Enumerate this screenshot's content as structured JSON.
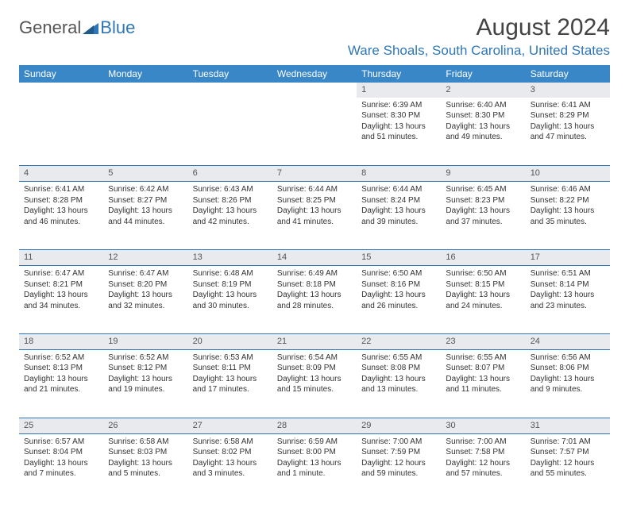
{
  "brand": {
    "part1": "General",
    "part2": "Blue"
  },
  "title": "August 2024",
  "location": "Ware Shoals, South Carolina, United States",
  "day_headers": [
    "Sunday",
    "Monday",
    "Tuesday",
    "Wednesday",
    "Thursday",
    "Friday",
    "Saturday"
  ],
  "colors": {
    "header_bg": "#3a87c8",
    "accent": "#2f77b7",
    "daynum_bg": "#e8eaed",
    "text": "#333333"
  },
  "weeks": [
    [
      null,
      null,
      null,
      null,
      {
        "n": "1",
        "sr": "Sunrise: 6:39 AM",
        "ss": "Sunset: 8:30 PM",
        "d1": "Daylight: 13 hours",
        "d2": "and 51 minutes."
      },
      {
        "n": "2",
        "sr": "Sunrise: 6:40 AM",
        "ss": "Sunset: 8:30 PM",
        "d1": "Daylight: 13 hours",
        "d2": "and 49 minutes."
      },
      {
        "n": "3",
        "sr": "Sunrise: 6:41 AM",
        "ss": "Sunset: 8:29 PM",
        "d1": "Daylight: 13 hours",
        "d2": "and 47 minutes."
      }
    ],
    [
      {
        "n": "4",
        "sr": "Sunrise: 6:41 AM",
        "ss": "Sunset: 8:28 PM",
        "d1": "Daylight: 13 hours",
        "d2": "and 46 minutes."
      },
      {
        "n": "5",
        "sr": "Sunrise: 6:42 AM",
        "ss": "Sunset: 8:27 PM",
        "d1": "Daylight: 13 hours",
        "d2": "and 44 minutes."
      },
      {
        "n": "6",
        "sr": "Sunrise: 6:43 AM",
        "ss": "Sunset: 8:26 PM",
        "d1": "Daylight: 13 hours",
        "d2": "and 42 minutes."
      },
      {
        "n": "7",
        "sr": "Sunrise: 6:44 AM",
        "ss": "Sunset: 8:25 PM",
        "d1": "Daylight: 13 hours",
        "d2": "and 41 minutes."
      },
      {
        "n": "8",
        "sr": "Sunrise: 6:44 AM",
        "ss": "Sunset: 8:24 PM",
        "d1": "Daylight: 13 hours",
        "d2": "and 39 minutes."
      },
      {
        "n": "9",
        "sr": "Sunrise: 6:45 AM",
        "ss": "Sunset: 8:23 PM",
        "d1": "Daylight: 13 hours",
        "d2": "and 37 minutes."
      },
      {
        "n": "10",
        "sr": "Sunrise: 6:46 AM",
        "ss": "Sunset: 8:22 PM",
        "d1": "Daylight: 13 hours",
        "d2": "and 35 minutes."
      }
    ],
    [
      {
        "n": "11",
        "sr": "Sunrise: 6:47 AM",
        "ss": "Sunset: 8:21 PM",
        "d1": "Daylight: 13 hours",
        "d2": "and 34 minutes."
      },
      {
        "n": "12",
        "sr": "Sunrise: 6:47 AM",
        "ss": "Sunset: 8:20 PM",
        "d1": "Daylight: 13 hours",
        "d2": "and 32 minutes."
      },
      {
        "n": "13",
        "sr": "Sunrise: 6:48 AM",
        "ss": "Sunset: 8:19 PM",
        "d1": "Daylight: 13 hours",
        "d2": "and 30 minutes."
      },
      {
        "n": "14",
        "sr": "Sunrise: 6:49 AM",
        "ss": "Sunset: 8:18 PM",
        "d1": "Daylight: 13 hours",
        "d2": "and 28 minutes."
      },
      {
        "n": "15",
        "sr": "Sunrise: 6:50 AM",
        "ss": "Sunset: 8:16 PM",
        "d1": "Daylight: 13 hours",
        "d2": "and 26 minutes."
      },
      {
        "n": "16",
        "sr": "Sunrise: 6:50 AM",
        "ss": "Sunset: 8:15 PM",
        "d1": "Daylight: 13 hours",
        "d2": "and 24 minutes."
      },
      {
        "n": "17",
        "sr": "Sunrise: 6:51 AM",
        "ss": "Sunset: 8:14 PM",
        "d1": "Daylight: 13 hours",
        "d2": "and 23 minutes."
      }
    ],
    [
      {
        "n": "18",
        "sr": "Sunrise: 6:52 AM",
        "ss": "Sunset: 8:13 PM",
        "d1": "Daylight: 13 hours",
        "d2": "and 21 minutes."
      },
      {
        "n": "19",
        "sr": "Sunrise: 6:52 AM",
        "ss": "Sunset: 8:12 PM",
        "d1": "Daylight: 13 hours",
        "d2": "and 19 minutes."
      },
      {
        "n": "20",
        "sr": "Sunrise: 6:53 AM",
        "ss": "Sunset: 8:11 PM",
        "d1": "Daylight: 13 hours",
        "d2": "and 17 minutes."
      },
      {
        "n": "21",
        "sr": "Sunrise: 6:54 AM",
        "ss": "Sunset: 8:09 PM",
        "d1": "Daylight: 13 hours",
        "d2": "and 15 minutes."
      },
      {
        "n": "22",
        "sr": "Sunrise: 6:55 AM",
        "ss": "Sunset: 8:08 PM",
        "d1": "Daylight: 13 hours",
        "d2": "and 13 minutes."
      },
      {
        "n": "23",
        "sr": "Sunrise: 6:55 AM",
        "ss": "Sunset: 8:07 PM",
        "d1": "Daylight: 13 hours",
        "d2": "and 11 minutes."
      },
      {
        "n": "24",
        "sr": "Sunrise: 6:56 AM",
        "ss": "Sunset: 8:06 PM",
        "d1": "Daylight: 13 hours",
        "d2": "and 9 minutes."
      }
    ],
    [
      {
        "n": "25",
        "sr": "Sunrise: 6:57 AM",
        "ss": "Sunset: 8:04 PM",
        "d1": "Daylight: 13 hours",
        "d2": "and 7 minutes."
      },
      {
        "n": "26",
        "sr": "Sunrise: 6:58 AM",
        "ss": "Sunset: 8:03 PM",
        "d1": "Daylight: 13 hours",
        "d2": "and 5 minutes."
      },
      {
        "n": "27",
        "sr": "Sunrise: 6:58 AM",
        "ss": "Sunset: 8:02 PM",
        "d1": "Daylight: 13 hours",
        "d2": "and 3 minutes."
      },
      {
        "n": "28",
        "sr": "Sunrise: 6:59 AM",
        "ss": "Sunset: 8:00 PM",
        "d1": "Daylight: 13 hours",
        "d2": "and 1 minute."
      },
      {
        "n": "29",
        "sr": "Sunrise: 7:00 AM",
        "ss": "Sunset: 7:59 PM",
        "d1": "Daylight: 12 hours",
        "d2": "and 59 minutes."
      },
      {
        "n": "30",
        "sr": "Sunrise: 7:00 AM",
        "ss": "Sunset: 7:58 PM",
        "d1": "Daylight: 12 hours",
        "d2": "and 57 minutes."
      },
      {
        "n": "31",
        "sr": "Sunrise: 7:01 AM",
        "ss": "Sunset: 7:57 PM",
        "d1": "Daylight: 12 hours",
        "d2": "and 55 minutes."
      }
    ]
  ]
}
